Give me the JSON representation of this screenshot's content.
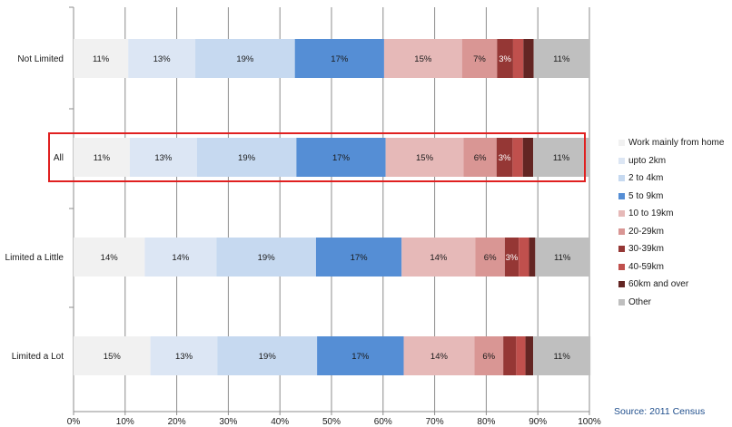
{
  "chart_data": {
    "type": "bar",
    "orientation": "horizontal",
    "stacked": "percent",
    "categories": [
      "Not Limited",
      "All",
      "Limited a Little",
      "Limited a Lot"
    ],
    "highlighted_category": "All",
    "highlight_color": "#e02020",
    "xlim": [
      0,
      100
    ],
    "xticks": [
      "0%",
      "10%",
      "20%",
      "30%",
      "40%",
      "50%",
      "60%",
      "70%",
      "80%",
      "90%",
      "100%"
    ],
    "grid": "vertical major gridlines",
    "legend_position": "right",
    "series": [
      {
        "name": "Work mainly from home",
        "color": "#f1f1f1",
        "text_color": "#1a1a1a",
        "values": [
          10.6,
          10.9,
          13.8,
          14.9
        ],
        "labels": [
          "11%",
          "11%",
          "14%",
          "15%"
        ]
      },
      {
        "name": "upto 2km",
        "color": "#dce6f4",
        "text_color": "#1a1a1a",
        "values": [
          13.0,
          13.0,
          13.9,
          13.0
        ],
        "labels": [
          "13%",
          "13%",
          "14%",
          "13%"
        ]
      },
      {
        "name": "2 to 4km",
        "color": "#c6d9f0",
        "text_color": "#1a1a1a",
        "values": [
          19.3,
          19.3,
          19.3,
          19.3
        ],
        "labels": [
          "19%",
          "19%",
          "19%",
          "19%"
        ]
      },
      {
        "name": "5 to 9km",
        "color": "#558ed5",
        "text_color": "#1a1a1a",
        "values": [
          17.3,
          17.3,
          16.6,
          16.8
        ],
        "labels": [
          "17%",
          "17%",
          "17%",
          "17%"
        ]
      },
      {
        "name": "10 to 19km",
        "color": "#e6b9b8",
        "text_color": "#1a1a1a",
        "values": [
          15.1,
          15.1,
          14.3,
          13.7
        ],
        "labels": [
          "15%",
          "15%",
          "14%",
          "14%"
        ]
      },
      {
        "name": "20-29km",
        "color": "#d99694",
        "text_color": "#1a1a1a",
        "values": [
          6.8,
          6.4,
          5.7,
          5.6
        ],
        "labels": [
          "7%",
          "6%",
          "6%",
          "6%"
        ]
      },
      {
        "name": "30-39km",
        "color": "#953735",
        "text_color": "#ffffff",
        "values": [
          3.1,
          3.1,
          2.7,
          2.5
        ],
        "labels": [
          "3%",
          "3%",
          "3%",
          ""
        ]
      },
      {
        "name": "40-59km",
        "color": "#c0504d",
        "text_color": "#ffffff",
        "values": [
          2.0,
          2.0,
          2.0,
          1.8
        ],
        "labels": [
          "",
          "",
          "",
          ""
        ]
      },
      {
        "name": "60km and over",
        "color": "#632523",
        "text_color": "#ffffff",
        "values": [
          2.0,
          2.0,
          1.2,
          1.5
        ],
        "labels": [
          "",
          "",
          "",
          ""
        ]
      },
      {
        "name": "Other",
        "color": "#bfbfbf",
        "text_color": "#1a1a1a",
        "values": [
          10.8,
          10.9,
          10.5,
          11.1
        ],
        "labels": [
          "11%",
          "11%",
          "11%",
          "11%"
        ]
      }
    ]
  },
  "source": "Source: 2011 Census"
}
